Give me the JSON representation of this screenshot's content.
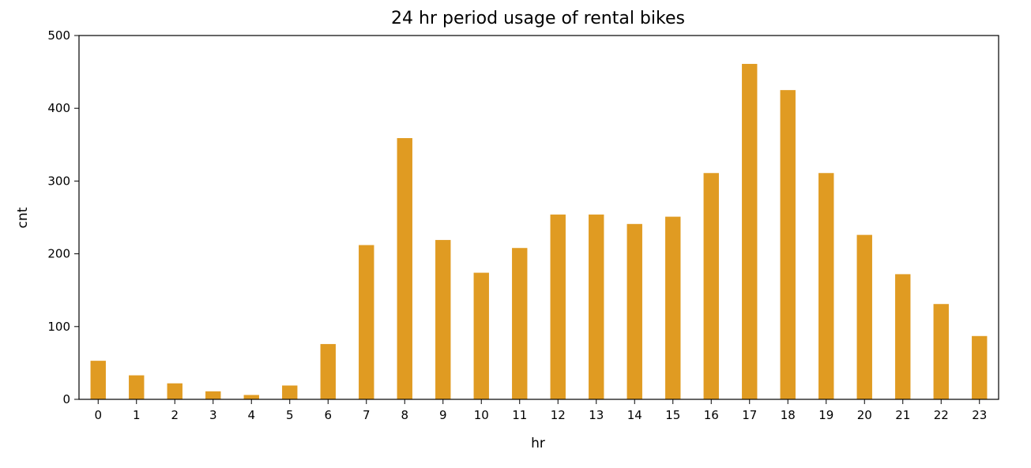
{
  "chart_data": {
    "type": "bar",
    "title": "24 hr period usage of rental bikes",
    "xlabel": "hr",
    "ylabel": "cnt",
    "categories": [
      "0",
      "1",
      "2",
      "3",
      "4",
      "5",
      "6",
      "7",
      "8",
      "9",
      "10",
      "11",
      "12",
      "13",
      "14",
      "15",
      "16",
      "17",
      "18",
      "19",
      "20",
      "21",
      "22",
      "23"
    ],
    "values": [
      53,
      33,
      22,
      11,
      6,
      19,
      76,
      212,
      359,
      219,
      174,
      208,
      254,
      254,
      241,
      251,
      311,
      461,
      425,
      311,
      226,
      172,
      131,
      87
    ],
    "ylim": [
      0,
      500
    ],
    "yticks": [
      0,
      100,
      200,
      300,
      400,
      500
    ],
    "grid": false,
    "legend": "none",
    "bar_color": "#e09b22"
  }
}
